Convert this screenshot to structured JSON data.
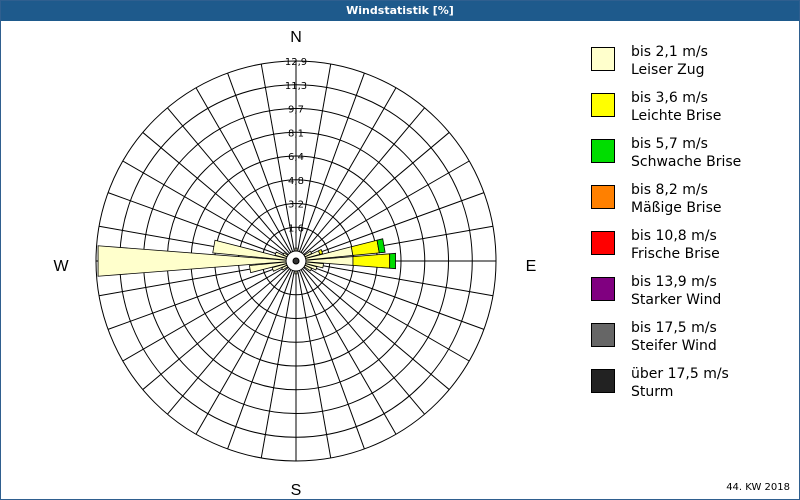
{
  "window": {
    "title": "Windstatistik [%]"
  },
  "footer": {
    "text": "44. KW 2018"
  },
  "chart_data": {
    "type": "wind-rose",
    "title": "Windstatistik [%]",
    "directions": {
      "north": "N",
      "east": "E",
      "south": "S",
      "west": "W"
    },
    "radial_ticks": [
      "1,6",
      "3,2",
      "4,8",
      "6,4",
      "8,1",
      "9,7",
      "11,3",
      "12,9"
    ],
    "radial_max": 12.9,
    "sectors": 36,
    "speed_classes": [
      {
        "range": "bis 2,1 m/s",
        "name": "Leiser Zug",
        "color": "#ffffcc"
      },
      {
        "range": "bis 3,6 m/s",
        "name": "Leichte Brise",
        "color": "#ffff00"
      },
      {
        "range": "bis 5,7 m/s",
        "name": "Schwache Brise",
        "color": "#00dd00"
      },
      {
        "range": "bis 8,2 m/s",
        "name": "Mäßige Brise",
        "color": "#ff8000"
      },
      {
        "range": "bis 10,8 m/s",
        "name": "Frische Brise",
        "color": "#ff0000"
      },
      {
        "range": "bis 13,9 m/s",
        "name": "Starker Wind",
        "color": "#800080"
      },
      {
        "range": "bis 17,5 m/s",
        "name": "Steifer Wind",
        "color": "#666666"
      },
      {
        "range": "über 17,5 m/s",
        "name": "Sturm",
        "color": "#222222"
      }
    ],
    "bars": [
      {
        "direction_deg": 270,
        "values": [
          12.8,
          0,
          0,
          0,
          0,
          0,
          0,
          0
        ]
      },
      {
        "direction_deg": 280,
        "values": [
          5.0,
          0,
          0,
          0,
          0,
          0,
          0,
          0
        ]
      },
      {
        "direction_deg": 260,
        "values": [
          2.5,
          0,
          0,
          0,
          0,
          0,
          0,
          0
        ]
      },
      {
        "direction_deg": 250,
        "values": [
          1.0,
          0,
          0,
          0,
          0,
          0,
          0,
          0
        ]
      },
      {
        "direction_deg": 290,
        "values": [
          0.8,
          0,
          0,
          0,
          0,
          0,
          0,
          0
        ]
      },
      {
        "direction_deg": 90,
        "values": [
          3.2,
          2.5,
          0.4,
          0,
          0,
          0,
          0,
          0
        ]
      },
      {
        "direction_deg": 80,
        "values": [
          3.2,
          1.8,
          0.4,
          0,
          0,
          0,
          0,
          0
        ]
      },
      {
        "direction_deg": 70,
        "values": [
          1.0,
          0.2,
          0,
          0,
          0,
          0,
          0,
          0
        ]
      },
      {
        "direction_deg": 100,
        "values": [
          1.2,
          0,
          0,
          0,
          0,
          0,
          0,
          0
        ]
      },
      {
        "direction_deg": 110,
        "values": [
          0.8,
          0,
          0,
          0,
          0,
          0,
          0,
          0
        ]
      },
      {
        "direction_deg": 60,
        "values": [
          0.5,
          0,
          0,
          0,
          0,
          0,
          0,
          0
        ]
      },
      {
        "direction_deg": 120,
        "values": [
          0.5,
          0,
          0,
          0,
          0,
          0,
          0,
          0
        ]
      },
      {
        "direction_deg": 240,
        "values": [
          0.4,
          0,
          0,
          0,
          0,
          0,
          0,
          0
        ]
      },
      {
        "direction_deg": 300,
        "values": [
          0.3,
          0,
          0,
          0,
          0,
          0,
          0,
          0
        ]
      },
      {
        "direction_deg": 0,
        "values": [
          0.2,
          0,
          0,
          0,
          0,
          0,
          0,
          0
        ]
      },
      {
        "direction_deg": 180,
        "values": [
          0.2,
          0,
          0,
          0,
          0,
          0,
          0,
          0
        ]
      }
    ],
    "grid": true,
    "legend_position": "right"
  }
}
